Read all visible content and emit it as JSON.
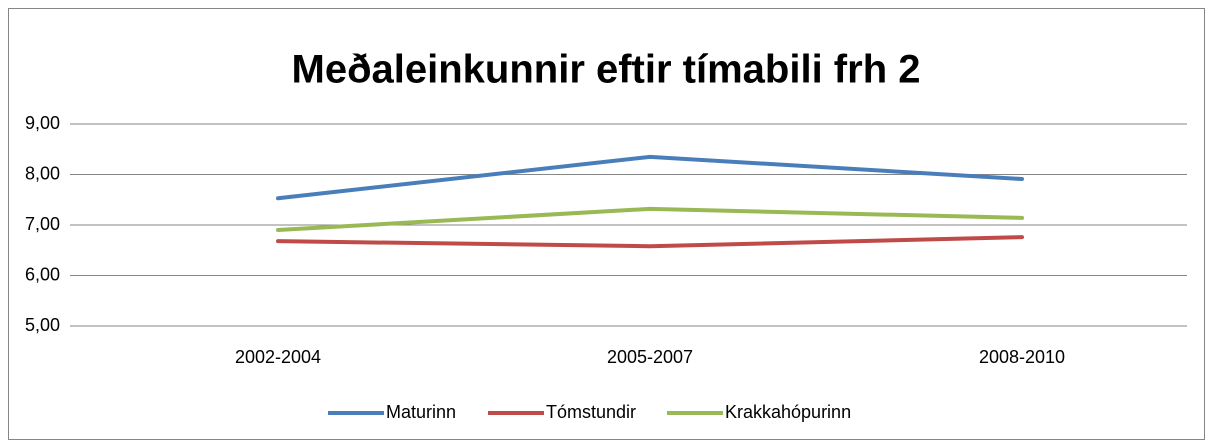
{
  "chart_data": {
    "type": "line",
    "title": "Meðaleinkunnir eftir tímabili frh 2",
    "categories": [
      "2002-2004",
      "2005-2007",
      "2008-2010"
    ],
    "series": [
      {
        "name": "Maturinn",
        "color": "#4a7ebb",
        "values": [
          7.53,
          8.35,
          7.91
        ]
      },
      {
        "name": "Tómstundir",
        "color": "#be4b48",
        "values": [
          6.68,
          6.58,
          6.76
        ]
      },
      {
        "name": "Krakkahópurinn",
        "color": "#98b954",
        "values": [
          6.9,
          7.32,
          7.14
        ]
      }
    ],
    "ylim": [
      5,
      9
    ],
    "yticks": [
      {
        "value": 5,
        "label": "5,00"
      },
      {
        "value": 6,
        "label": "6,00"
      },
      {
        "value": 7,
        "label": "7,00"
      },
      {
        "value": 8,
        "label": "8,00"
      },
      {
        "value": 9,
        "label": "9,00"
      }
    ],
    "grid": true,
    "legend": "bottom"
  }
}
